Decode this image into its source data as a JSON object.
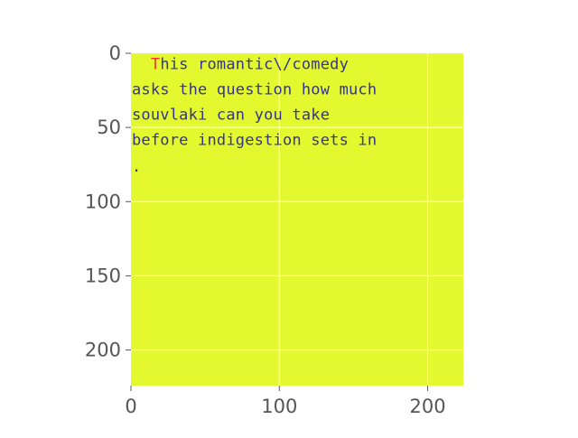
{
  "chart_data": {
    "type": "heatmap",
    "title": "",
    "xlabel": "",
    "ylabel": "",
    "xlim": [
      0,
      224
    ],
    "ylim": [
      224,
      0
    ],
    "x_ticks": [
      0,
      100,
      200
    ],
    "y_ticks": [
      0,
      50,
      100,
      150,
      200
    ],
    "x_tick_labels": [
      "0",
      "100",
      "200"
    ],
    "y_tick_labels": [
      "0",
      "50",
      "100",
      "150",
      "200"
    ],
    "grid": true,
    "legend": "none",
    "image_background_color": "#e3f82f",
    "image_text_color": "#34338f",
    "image_text_accent_color": "#ff3030",
    "image_text_lines": [
      {
        "text": "  This romantic\\/comedy",
        "y": 7
      },
      {
        "text": "asks the question how much",
        "y": 24
      },
      {
        "text": "souvlaki can you take",
        "y": 41
      },
      {
        "text": "before indigestion sets in",
        "y": 58
      },
      {
        "text": ".",
        "y": 76
      }
    ]
  }
}
